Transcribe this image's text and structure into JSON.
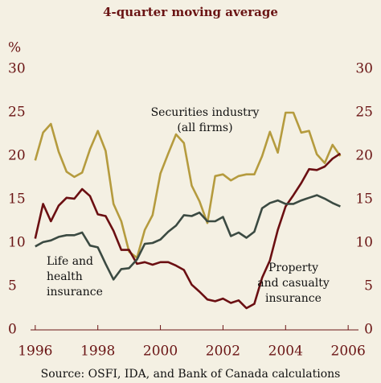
{
  "chart_data": {
    "type": "line",
    "title": "4-quarter moving average",
    "y_label": "%",
    "source": "Source: OSFI, IDA, and Bank of Canada calculations",
    "annotations": [
      {
        "lines": [
          "Securities industry",
          "(all firms)"
        ]
      },
      {
        "lines": [
          "Life and",
          "health",
          "insurance"
        ]
      },
      {
        "lines": [
          "Property",
          "and casualty",
          "insurance"
        ]
      }
    ],
    "x": [
      1996,
      1996.25,
      1996.5,
      1996.75,
      1997,
      1997.25,
      1997.5,
      1997.75,
      1998,
      1998.25,
      1998.5,
      1998.75,
      1999,
      1999.25,
      1999.5,
      1999.75,
      2000,
      2000.25,
      2000.5,
      2000.75,
      2001,
      2001.25,
      2001.5,
      2001.75,
      2002,
      2002.25,
      2002.5,
      2002.75,
      2003,
      2003.25,
      2003.5,
      2003.75,
      2004,
      2004.25,
      2004.5,
      2004.75,
      2005,
      2005.25,
      2005.5,
      2005.75
    ],
    "series": [
      {
        "name": "Securities industry",
        "color": "#b59b3e",
        "values": [
          19.5,
          22.7,
          23.7,
          20.5,
          18.2,
          17.6,
          18.1,
          20.8,
          22.9,
          20.6,
          14.5,
          12.5,
          9.0,
          8.3,
          11.5,
          13.2,
          18.0,
          20.3,
          22.5,
          21.5,
          16.6,
          14.8,
          12.3,
          17.7,
          17.9,
          17.2,
          17.7,
          17.9,
          17.9,
          20.0,
          22.8,
          20.4,
          25.0,
          25.0,
          22.7,
          22.9,
          20.2,
          19.2,
          21.3,
          20.0
        ]
      },
      {
        "name": "Property and casualty insurance",
        "color": "#6b0f12",
        "values": [
          10.5,
          14.5,
          12.5,
          14.3,
          15.2,
          15.1,
          16.2,
          15.4,
          13.3,
          13.1,
          11.4,
          9.2,
          9.2,
          7.6,
          7.8,
          7.5,
          7.8,
          7.8,
          7.4,
          6.9,
          5.2,
          4.4,
          3.5,
          3.3,
          3.6,
          3.1,
          3.4,
          2.5,
          3.0,
          6.0,
          8.0,
          11.5,
          14.2,
          15.5,
          16.9,
          18.5,
          18.4,
          18.8,
          19.7,
          20.3
        ]
      },
      {
        "name": "Life and health insurance",
        "color": "#3b4a42",
        "values": [
          9.6,
          10.1,
          10.3,
          10.7,
          10.9,
          10.9,
          11.2,
          9.7,
          9.5,
          7.6,
          5.8,
          7.0,
          7.1,
          8.1,
          9.9,
          10.0,
          10.4,
          11.3,
          12.0,
          13.2,
          13.1,
          13.5,
          12.5,
          12.5,
          13.0,
          10.8,
          11.2,
          10.6,
          11.3,
          14.0,
          14.6,
          14.9,
          14.5,
          14.5,
          14.9,
          15.2,
          15.5,
          15.1,
          14.6,
          14.2
        ]
      }
    ],
    "xlim": [
      1995.85,
      2006.33
    ],
    "xticks": [
      1996,
      1998,
      2000,
      2002,
      2004,
      2006
    ],
    "ylim": [
      0,
      30
    ],
    "yticks": [
      0,
      5,
      10,
      15,
      20,
      25,
      30
    ],
    "y2lim": [
      0,
      30
    ],
    "y2ticks": [
      0,
      5,
      10,
      15,
      20,
      25,
      30
    ],
    "grid": false
  }
}
